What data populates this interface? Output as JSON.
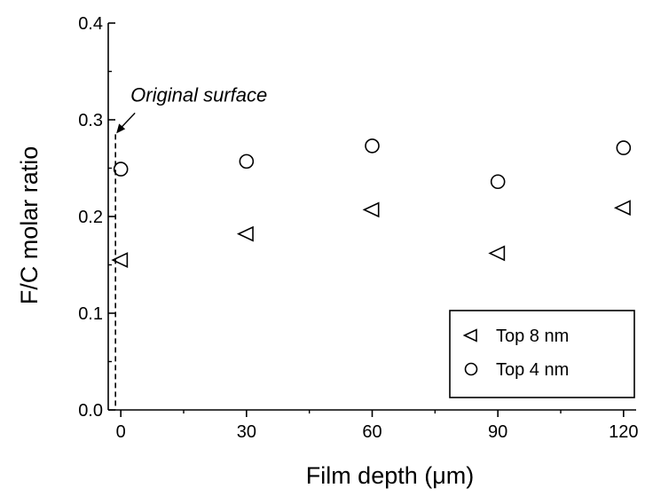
{
  "chart_data": {
    "type": "scatter",
    "xlabel": "Film depth (μm)",
    "ylabel": "F/C molar ratio",
    "xlim": [
      -3,
      123
    ],
    "ylim": [
      0.0,
      0.4
    ],
    "x_ticks": [
      0,
      30,
      60,
      90,
      120
    ],
    "x_tick_labels": [
      "0",
      "30",
      "60",
      "90",
      "120"
    ],
    "y_ticks": [
      0.0,
      0.1,
      0.2,
      0.3,
      0.4
    ],
    "y_tick_labels": [
      "0.0",
      "0.1",
      "0.2",
      "0.3",
      "0.4"
    ],
    "grid": false,
    "legend_position": "bottom-right",
    "series": [
      {
        "name": "Top 8 nm",
        "marker": "triangle-left",
        "x": [
          0,
          30,
          60,
          90,
          120
        ],
        "y": [
          0.155,
          0.182,
          0.207,
          0.162,
          0.209
        ]
      },
      {
        "name": "Top 4 nm",
        "marker": "circle",
        "x": [
          0,
          30,
          60,
          90,
          120
        ],
        "y": [
          0.249,
          0.257,
          0.273,
          0.236,
          0.271
        ]
      }
    ],
    "annotations": [
      {
        "text": "Original surface",
        "target_x": 0,
        "target_y": 0.285,
        "style": "dashed vertical line with arrow"
      }
    ]
  }
}
